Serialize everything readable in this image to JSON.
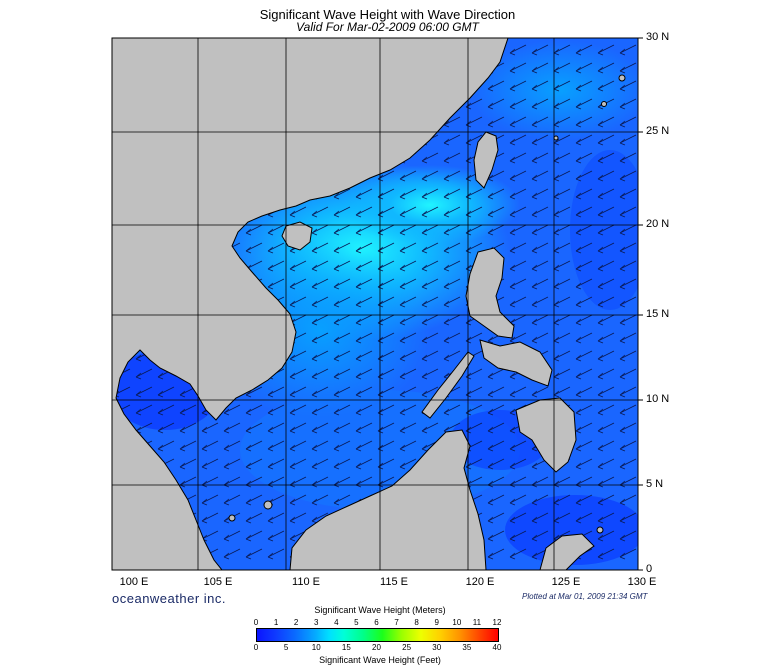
{
  "title": "Significant Wave Height with Wave Direction",
  "subtitle": "Valid For Mar-02-2009 06:00 GMT",
  "map": {
    "lat_labels": [
      "30 N",
      "25 N",
      "20 N",
      "15 N",
      "10 N",
      "5 N",
      "0"
    ],
    "lon_labels": [
      "100 E",
      "105 E",
      "110 E",
      "115 E",
      "120 E",
      "125 E",
      "130 E"
    ],
    "lon_range": [
      100,
      130
    ],
    "lat_range": [
      0,
      30
    ],
    "wave_direction": "from northeast",
    "land_color": "#c0c0c0",
    "ocean_base_color": "#1060ff"
  },
  "brand": "oceanweather inc.",
  "plotted": "Plotted at Mar 01, 2009 21:34 GMT",
  "colorbar": {
    "title": "Significant Wave Height (Meters)",
    "meters": [
      "0",
      "1",
      "2",
      "3",
      "4",
      "5",
      "6",
      "7",
      "8",
      "9",
      "10",
      "11",
      "12"
    ],
    "feet": [
      "0",
      "5",
      "10",
      "15",
      "20",
      "25",
      "30",
      "35",
      "40"
    ],
    "footer": "Significant Wave Height (Feet)"
  }
}
